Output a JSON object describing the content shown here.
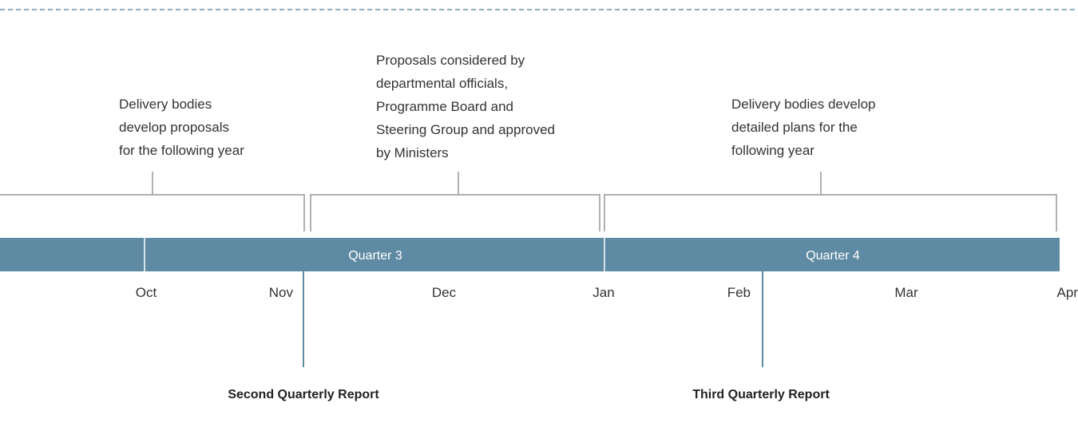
{
  "annotations": [
    {
      "lines": [
        "Delivery bodies",
        "develop proposals",
        "for the following year"
      ]
    },
    {
      "lines": [
        "Proposals considered by",
        "departmental officials,",
        "Programme Board and",
        "Steering Group and approved",
        "by Ministers"
      ]
    },
    {
      "lines": [
        "Delivery bodies develop",
        "detailed plans for the",
        "following year"
      ]
    }
  ],
  "quarters": [
    "Quarter 3",
    "Quarter 4"
  ],
  "months": [
    "Oct",
    "Nov",
    "Dec",
    "Jan",
    "Feb",
    "Mar",
    "Apr"
  ],
  "reports": [
    "Second Quarterly Report",
    "Third Quarterly Report"
  ]
}
